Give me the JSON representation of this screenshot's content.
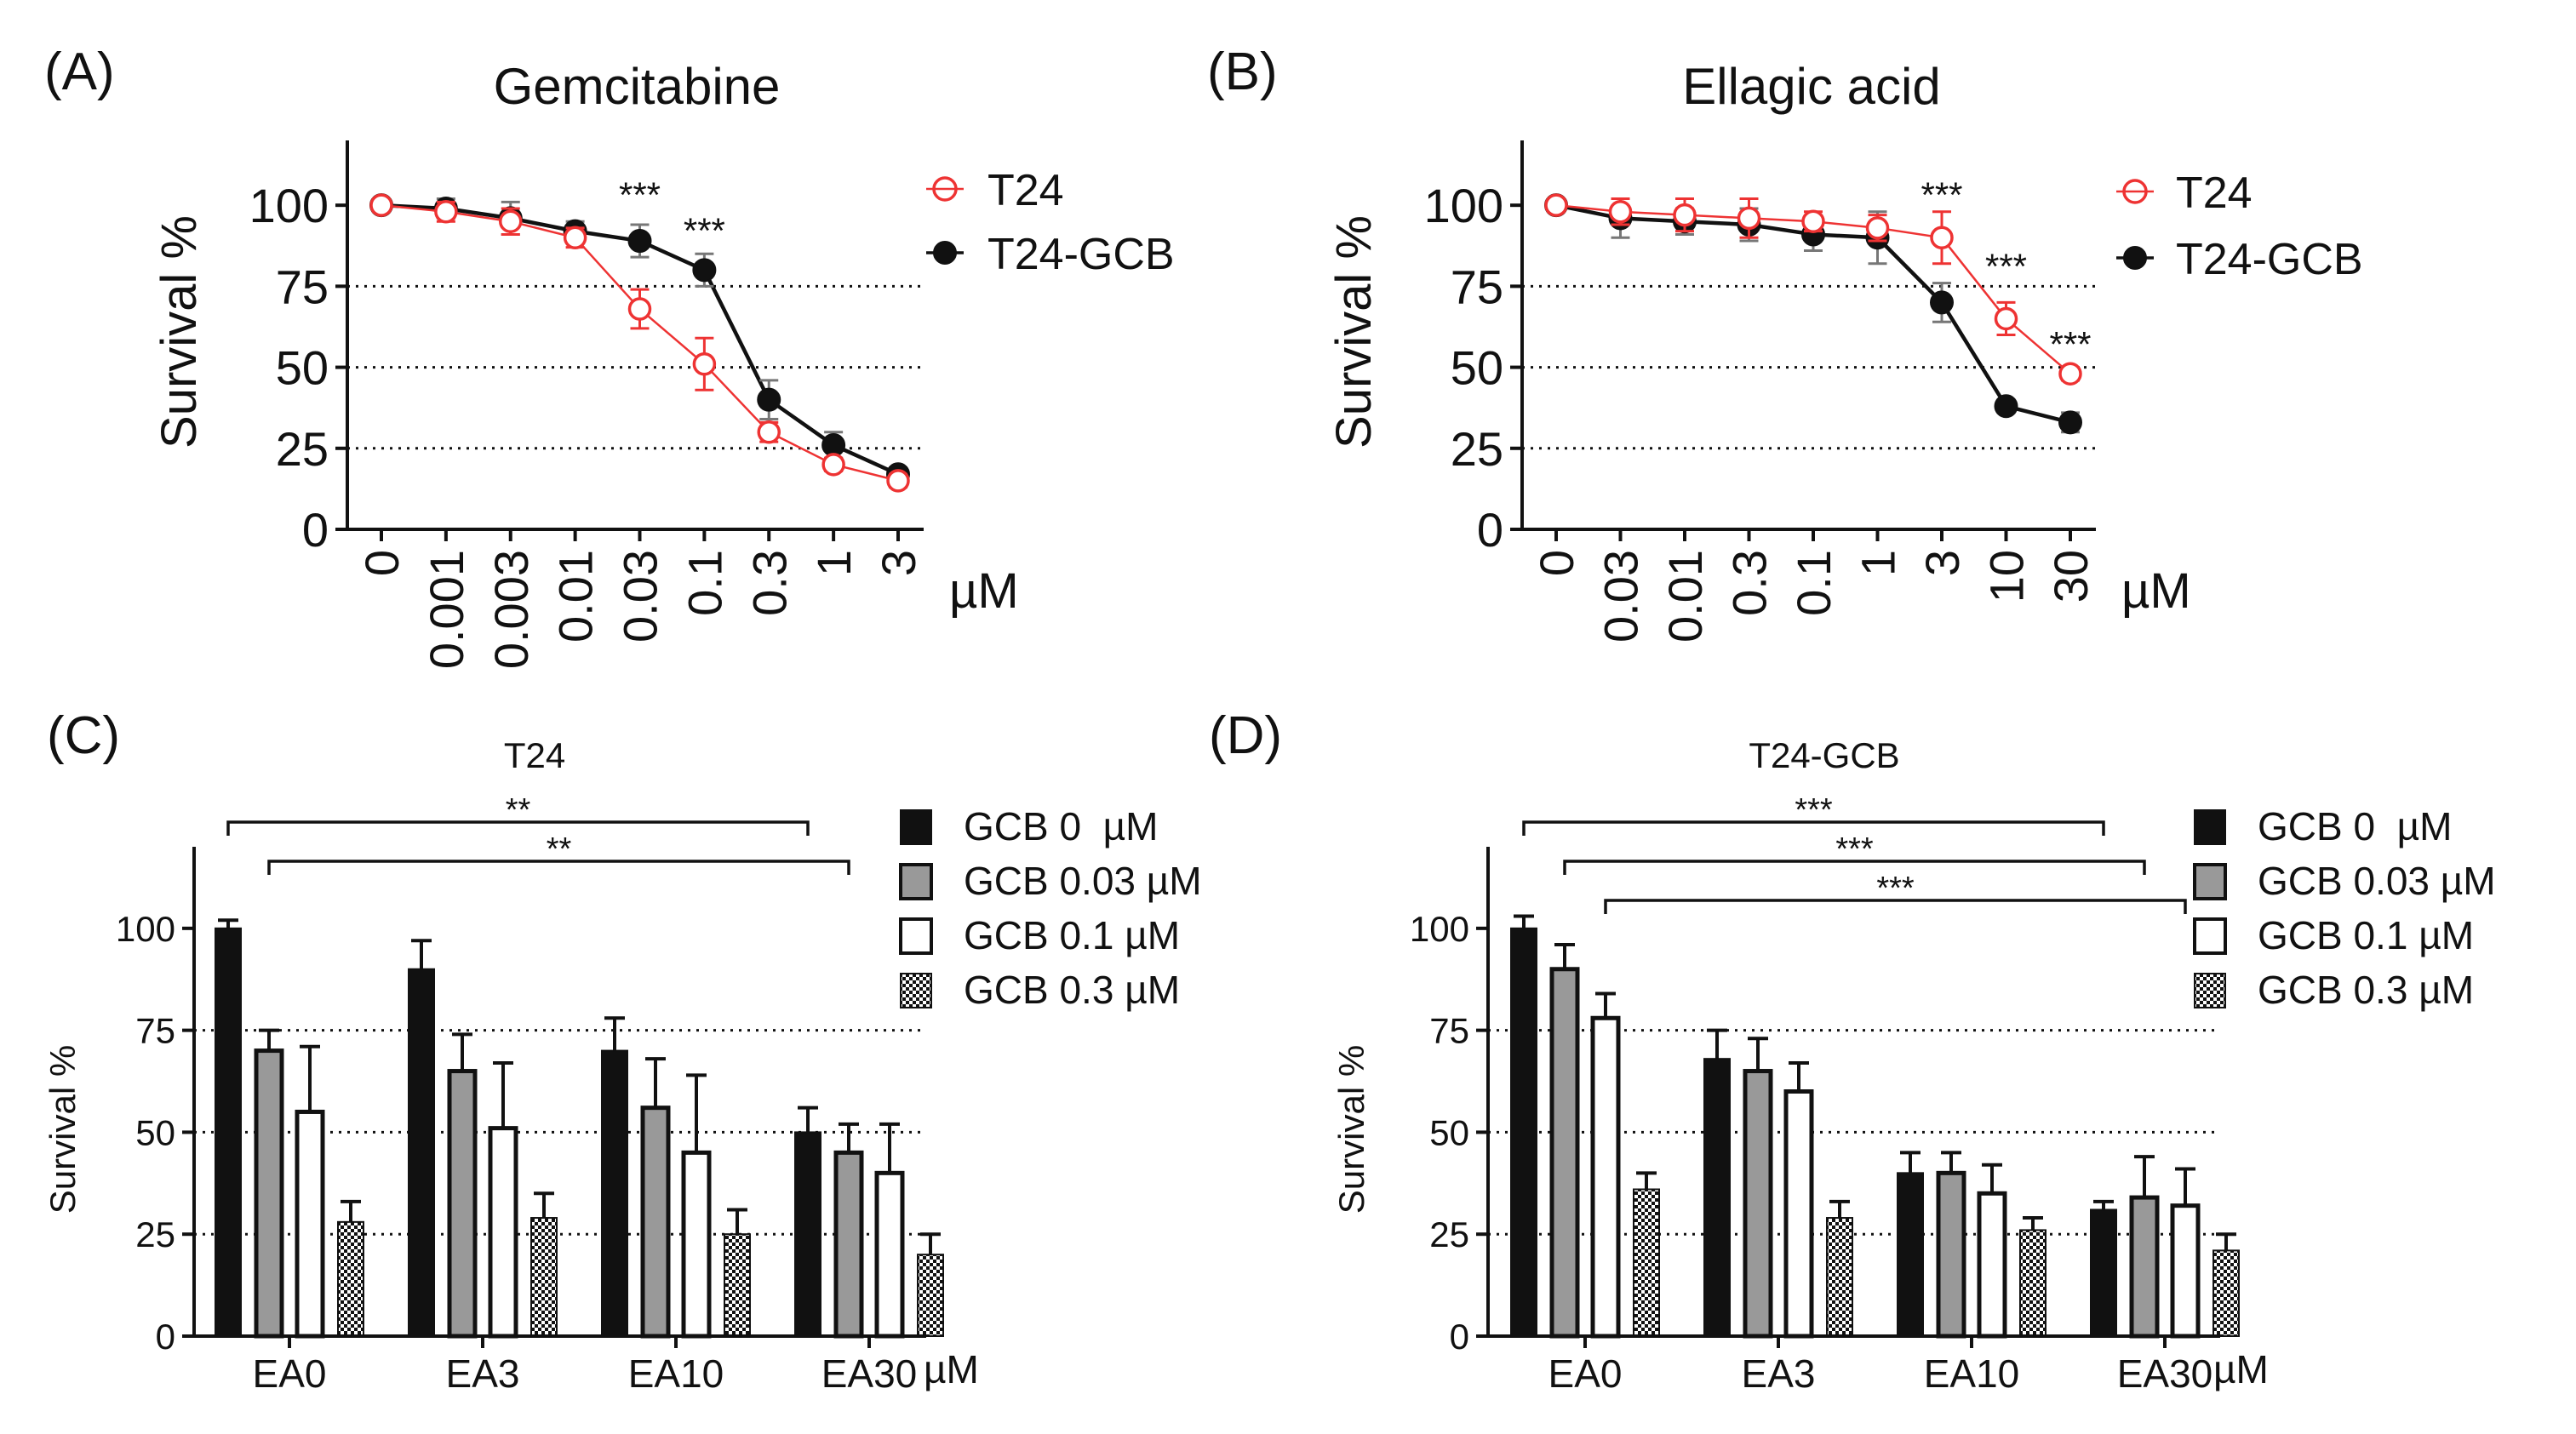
{
  "chart_data": [
    {
      "panel": "(A)",
      "type": "line",
      "title": "Gemcitabine",
      "ylabel": "Survival %",
      "unit": "µM",
      "ylim": [
        0,
        120
      ],
      "yticks": [
        0,
        25,
        50,
        75,
        100
      ],
      "hlines": [
        25,
        50,
        75
      ],
      "categories": [
        "0",
        "0.001",
        "0.003",
        "0.01",
        "0.03",
        "0.1",
        "0.3",
        "1",
        "3"
      ],
      "series": [
        {
          "name": "T24",
          "color": "#ee3333",
          "marker": "open-circle",
          "values": [
            100,
            98,
            95,
            90,
            68,
            51,
            30,
            20,
            15
          ],
          "errors": [
            2,
            3,
            4,
            3,
            6,
            8,
            3,
            2,
            2
          ]
        },
        {
          "name": "T24-GCB",
          "color": "#111111",
          "marker": "filled-circle",
          "values": [
            100,
            99,
            96,
            92,
            89,
            80,
            40,
            26,
            17
          ],
          "errors": [
            2,
            3,
            5,
            3,
            5,
            5,
            6,
            4,
            2
          ]
        }
      ],
      "annotations": [
        {
          "index": 4,
          "text": "***",
          "value": 103
        },
        {
          "index": 5,
          "text": "***",
          "value": 92
        }
      ]
    },
    {
      "panel": "(B)",
      "type": "line",
      "title": "Ellagic acid",
      "ylabel": "Survival %",
      "unit": "µM",
      "ylim": [
        0,
        120
      ],
      "yticks": [
        0,
        25,
        50,
        75,
        100
      ],
      "hlines": [
        25,
        50,
        75
      ],
      "categories": [
        "0",
        "0.03",
        "0.01",
        "0.3",
        "0.1",
        "1",
        "3",
        "10",
        "30"
      ],
      "series": [
        {
          "name": "T24",
          "color": "#ee3333",
          "marker": "open-circle",
          "values": [
            100,
            98,
            97,
            96,
            95,
            93,
            90,
            65,
            48
          ],
          "errors": [
            2,
            4,
            5,
            6,
            3,
            4,
            8,
            5,
            2
          ]
        },
        {
          "name": "T24-GCB",
          "color": "#111111",
          "marker": "filled-circle",
          "values": [
            100,
            96,
            95,
            94,
            91,
            90,
            70,
            38,
            33
          ],
          "errors": [
            2,
            6,
            4,
            5,
            5,
            8,
            6,
            2,
            3
          ]
        }
      ],
      "annotations": [
        {
          "index": 6,
          "text": "***",
          "value": 103
        },
        {
          "index": 7,
          "text": "***",
          "value": 81
        },
        {
          "index": 8,
          "text": "***",
          "value": 57
        }
      ]
    },
    {
      "panel": "(C)",
      "type": "bar",
      "title": "T24",
      "ylabel": "Survival %",
      "unit": "µM",
      "ylim": [
        0,
        120
      ],
      "yticks": [
        0,
        25,
        50,
        75,
        100
      ],
      "hlines": [
        25,
        50,
        75
      ],
      "categories": [
        "EA0",
        "EA3",
        "EA10",
        "EA30"
      ],
      "series": [
        {
          "name": "GCB 0  µM",
          "fill": "black",
          "values": [
            100,
            90,
            70,
            50
          ],
          "errors": [
            2,
            7,
            8,
            6
          ]
        },
        {
          "name": "GCB 0.03 µM",
          "fill": "gray",
          "values": [
            70,
            65,
            56,
            45
          ],
          "errors": [
            5,
            9,
            12,
            7
          ]
        },
        {
          "name": "GCB 0.1 µM",
          "fill": "white",
          "values": [
            55,
            51,
            45,
            40
          ],
          "errors": [
            16,
            16,
            19,
            12
          ]
        },
        {
          "name": "GCB 0.3 µM",
          "fill": "checker",
          "values": [
            28,
            29,
            25,
            20
          ],
          "errors": [
            5,
            6,
            6,
            5
          ]
        }
      ],
      "brackets": [
        {
          "from": [
            0,
            0
          ],
          "to": [
            3,
            0
          ],
          "text": "**"
        },
        {
          "from": [
            0,
            1
          ],
          "to": [
            3,
            1
          ],
          "text": "**"
        }
      ]
    },
    {
      "panel": "(D)",
      "type": "bar",
      "title": "T24-GCB",
      "ylabel": "Survival %",
      "unit": "µM",
      "ylim": [
        0,
        120
      ],
      "yticks": [
        0,
        25,
        50,
        75,
        100
      ],
      "hlines": [
        25,
        50,
        75
      ],
      "categories": [
        "EA0",
        "EA3",
        "EA10",
        "EA30"
      ],
      "series": [
        {
          "name": "GCB 0  µM",
          "fill": "black",
          "values": [
            100,
            68,
            40,
            31
          ],
          "errors": [
            3,
            7,
            5,
            2
          ]
        },
        {
          "name": "GCB 0.03 µM",
          "fill": "gray",
          "values": [
            90,
            65,
            40,
            34
          ],
          "errors": [
            6,
            8,
            5,
            10
          ]
        },
        {
          "name": "GCB 0.1 µM",
          "fill": "white",
          "values": [
            78,
            60,
            35,
            32
          ],
          "errors": [
            6,
            7,
            7,
            9
          ]
        },
        {
          "name": "GCB 0.3 µM",
          "fill": "checker",
          "values": [
            36,
            29,
            26,
            21
          ],
          "errors": [
            4,
            4,
            3,
            4
          ]
        }
      ],
      "brackets": [
        {
          "from": [
            0,
            0
          ],
          "to": [
            3,
            0
          ],
          "text": "***"
        },
        {
          "from": [
            0,
            1
          ],
          "to": [
            3,
            1
          ],
          "text": "***"
        },
        {
          "from": [
            0,
            2
          ],
          "to": [
            3,
            2
          ],
          "text": "***"
        }
      ]
    }
  ]
}
